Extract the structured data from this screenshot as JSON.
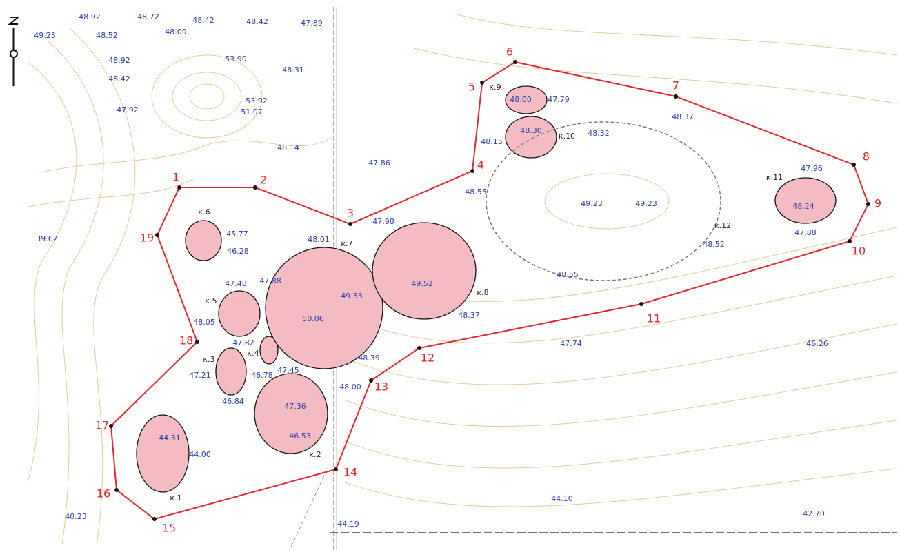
{
  "elevations": [
    "49.23",
    "48.92",
    "48.52",
    "48.72",
    "48.09",
    "48.42",
    "48.42",
    "47.89",
    "48.92",
    "48.42",
    "47.92",
    "53.90",
    "48.31",
    "53.92",
    "51.07",
    "48.14",
    "47.86",
    "39.62",
    "45.77",
    "46.28",
    "48.01",
    "47.98",
    "47.48",
    "47.88",
    "48.05",
    "49.53",
    "50.06",
    "49.52",
    "48.37",
    "47.82",
    "48.39",
    "47.45",
    "46.78",
    "47.21",
    "48.00",
    "46.84",
    "47.36",
    "46.53",
    "44.31",
    "44.00",
    "40.23",
    "44.10",
    "44.19",
    "42.70",
    "47.74",
    "46.26",
    "48.00",
    "47.79",
    "48.30",
    "48.15",
    "48.32",
    "48.37",
    "48.55",
    "49.23",
    "49.23",
    "48.52",
    "48.55",
    "47.96",
    "48.24",
    "47.88"
  ],
  "boundary_points": [
    "1",
    "2",
    "3",
    "4",
    "5",
    "6",
    "7",
    "8",
    "9",
    "10",
    "11",
    "12",
    "13",
    "14",
    "15",
    "16",
    "17",
    "18",
    "19"
  ],
  "mounds": [
    "к.1",
    "к.2",
    "к.3",
    "к.4",
    "к.5",
    "к.6",
    "к.7",
    "к.8",
    "к.9",
    "к.10",
    "к.11",
    "к.12"
  ]
}
